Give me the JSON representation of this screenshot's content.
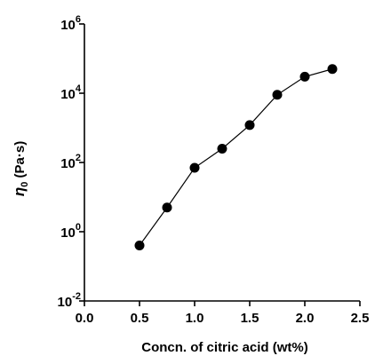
{
  "chart_data": {
    "type": "line",
    "xlabel": "Concn. of citric acid (wt%)",
    "ylabel": {
      "symbol": "η",
      "subscript": "0",
      "unit": " (Pa·s)"
    },
    "yscale": "log",
    "xlim": [
      0.0,
      2.5
    ],
    "ylim": [
      0.01,
      1000000
    ],
    "grid": false,
    "xticks": [
      {
        "value": 0.0,
        "label": "0.0"
      },
      {
        "value": 0.5,
        "label": "0.5"
      },
      {
        "value": 1.0,
        "label": "1.0"
      },
      {
        "value": 1.5,
        "label": "1.5"
      },
      {
        "value": 2.0,
        "label": "2.0"
      },
      {
        "value": 2.5,
        "label": "2.5"
      }
    ],
    "yticks": [
      {
        "value": 0.01,
        "base": "10",
        "exp": "-2"
      },
      {
        "value": 1,
        "base": "10",
        "exp": "0"
      },
      {
        "value": 100,
        "base": "10",
        "exp": "2"
      },
      {
        "value": 10000,
        "base": "10",
        "exp": "4"
      },
      {
        "value": 1000000,
        "base": "10",
        "exp": "6"
      }
    ],
    "series": [
      {
        "marker": "filled-circle",
        "color": "#000000",
        "points": [
          {
            "x": 0.5,
            "y": 0.4
          },
          {
            "x": 0.75,
            "y": 5
          },
          {
            "x": 1.0,
            "y": 70
          },
          {
            "x": 1.25,
            "y": 250
          },
          {
            "x": 1.5,
            "y": 1200
          },
          {
            "x": 1.75,
            "y": 9000
          },
          {
            "x": 2.0,
            "y": 30000
          },
          {
            "x": 2.25,
            "y": 50000
          }
        ]
      }
    ]
  }
}
